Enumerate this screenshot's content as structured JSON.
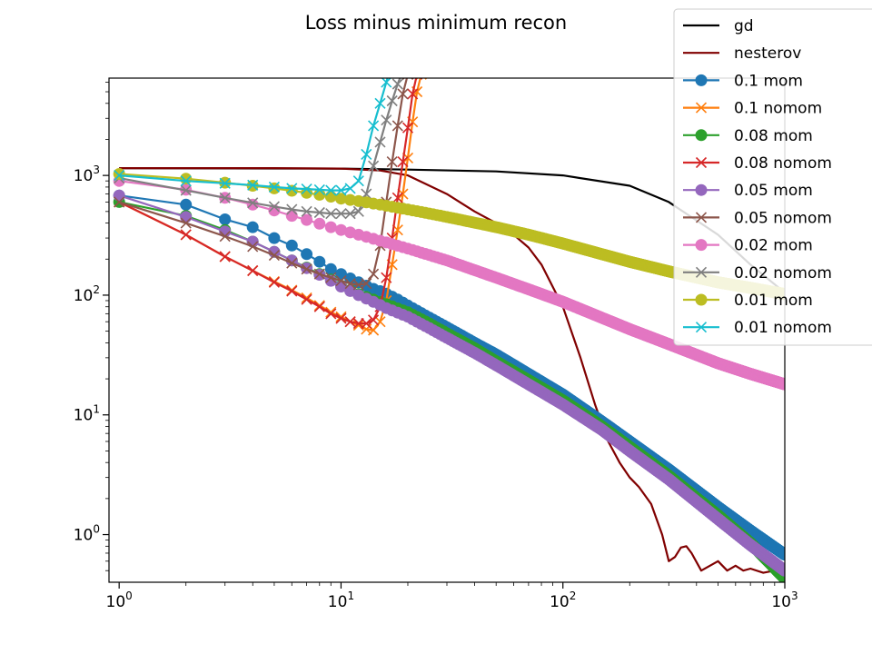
{
  "chart_data": {
    "type": "line",
    "title": "Loss minus minimum recon",
    "xlabel": "",
    "ylabel": "",
    "xscale": "log",
    "yscale": "log",
    "xlim": [
      0.9,
      1000
    ],
    "ylim": [
      0.4,
      6500
    ],
    "grid": false,
    "legend_position": "top-right",
    "x_ticks": [
      {
        "value": 1,
        "base": "10",
        "exp": "0"
      },
      {
        "value": 10,
        "base": "10",
        "exp": "1"
      },
      {
        "value": 100,
        "base": "10",
        "exp": "2"
      },
      {
        "value": 1000,
        "base": "10",
        "exp": "3"
      }
    ],
    "y_ticks": [
      {
        "value": 1,
        "base": "10",
        "exp": "0"
      },
      {
        "value": 10,
        "base": "10",
        "exp": "1"
      },
      {
        "value": 100,
        "base": "10",
        "exp": "2"
      },
      {
        "value": 1000,
        "base": "10",
        "exp": "3"
      }
    ],
    "series": [
      {
        "name": "gd",
        "color": "#000000",
        "marker": "none",
        "x": [
          1,
          10,
          20,
          50,
          100,
          200,
          300,
          500,
          700,
          1000
        ],
        "y": [
          1150,
          1140,
          1120,
          1080,
          1000,
          820,
          600,
          320,
          180,
          105
        ]
      },
      {
        "name": "nesterov",
        "color": "#800000",
        "marker": "none",
        "x": [
          1,
          5,
          10,
          15,
          20,
          30,
          40,
          50,
          60,
          70,
          80,
          100,
          120,
          140,
          160,
          180,
          200,
          220,
          250,
          280,
          300,
          320,
          340,
          360,
          380,
          420,
          460,
          500,
          550,
          600,
          650,
          700,
          800,
          900,
          1000
        ],
        "y": [
          1150,
          1150,
          1140,
          1100,
          1000,
          700,
          500,
          400,
          320,
          250,
          180,
          80,
          30,
          12,
          6,
          4,
          3,
          2.5,
          1.8,
          1.0,
          0.6,
          0.65,
          0.78,
          0.8,
          0.7,
          0.5,
          0.55,
          0.6,
          0.5,
          0.55,
          0.5,
          0.52,
          0.48,
          0.5,
          0.45
        ]
      },
      {
        "name": "0.1 mom",
        "color": "#1f77b4",
        "marker": "circle",
        "x": [
          1,
          2,
          3,
          4,
          5,
          6,
          7,
          8,
          9,
          10,
          11,
          12,
          13,
          14,
          15,
          16,
          18,
          20,
          25,
          30,
          40,
          50,
          70,
          100,
          150,
          200,
          300,
          500,
          700,
          1000
        ],
        "y": [
          680,
          570,
          430,
          370,
          300,
          260,
          220,
          190,
          165,
          150,
          138,
          128,
          120,
          113,
          108,
          103,
          92,
          82,
          65,
          54,
          40,
          32,
          22,
          14.8,
          8.8,
          6.0,
          3.5,
          1.7,
          1.08,
          0.68
        ]
      },
      {
        "name": "0.1 nomom",
        "color": "#ff7f0e",
        "marker": "x",
        "x": [
          1,
          2,
          3,
          4,
          5,
          6,
          7,
          8,
          9,
          10,
          11,
          12,
          13,
          14,
          15,
          16,
          17,
          18,
          19,
          20,
          21,
          22,
          23
        ],
        "y": [
          600,
          320,
          210,
          160,
          130,
          110,
          95,
          82,
          72,
          66,
          60,
          56,
          52,
          51,
          60,
          90,
          180,
          350,
          700,
          1400,
          2800,
          5000,
          7000
        ]
      },
      {
        "name": "0.08 mom",
        "color": "#2ca02c",
        "marker": "circle",
        "x": [
          1,
          2,
          3,
          4,
          5,
          6,
          7,
          8,
          9,
          10,
          12,
          14,
          16,
          20,
          25,
          30,
          40,
          50,
          70,
          100,
          150,
          200,
          300,
          500,
          700,
          1000
        ],
        "y": [
          600,
          460,
          350,
          280,
          230,
          195,
          170,
          150,
          135,
          120,
          102,
          92,
          84,
          72,
          58,
          48,
          36,
          28,
          19.5,
          13.2,
          8.0,
          5.4,
          3.1,
          1.45,
          0.85,
          0.43
        ]
      },
      {
        "name": "0.08 nomom",
        "color": "#d62728",
        "marker": "x",
        "x": [
          1,
          2,
          3,
          4,
          5,
          6,
          7,
          8,
          9,
          10,
          11,
          12,
          13,
          14,
          15,
          16,
          17,
          18,
          19,
          20,
          21,
          22,
          23
        ],
        "y": [
          600,
          320,
          210,
          160,
          128,
          108,
          92,
          80,
          70,
          64,
          60,
          58,
          58,
          62,
          80,
          140,
          300,
          650,
          1300,
          2500,
          4800,
          7000,
          9000
        ]
      },
      {
        "name": "0.05 mom",
        "color": "#9467bd",
        "marker": "circle",
        "x": [
          1,
          2,
          3,
          4,
          5,
          6,
          7,
          8,
          9,
          10,
          12,
          14,
          16,
          20,
          25,
          30,
          40,
          50,
          70,
          100,
          150,
          200,
          300,
          500,
          700,
          1000
        ],
        "y": [
          680,
          450,
          340,
          280,
          230,
          195,
          168,
          148,
          132,
          118,
          100,
          88,
          78,
          66,
          53,
          44,
          33,
          26,
          18,
          12.2,
          7.5,
          5.0,
          2.9,
          1.35,
          0.82,
          0.5
        ]
      },
      {
        "name": "0.05 nomom",
        "color": "#8c564b",
        "marker": "x",
        "x": [
          1,
          2,
          3,
          4,
          5,
          6,
          7,
          8,
          9,
          10,
          11,
          12,
          13,
          14,
          15,
          16,
          17,
          18,
          19,
          20,
          21
        ],
        "y": [
          600,
          400,
          310,
          255,
          215,
          185,
          165,
          150,
          140,
          132,
          125,
          122,
          125,
          150,
          260,
          600,
          1300,
          2600,
          4800,
          7000,
          9000
        ]
      },
      {
        "name": "0.02 mom",
        "color": "#e377c2",
        "marker": "circle",
        "x": [
          1,
          2,
          3,
          4,
          5,
          6,
          7,
          8,
          9,
          10,
          12,
          15,
          20,
          30,
          50,
          70,
          100,
          200,
          300,
          500,
          700,
          1000
        ],
        "y": [
          900,
          760,
          650,
          570,
          510,
          460,
          425,
          395,
          370,
          350,
          320,
          285,
          245,
          195,
          140,
          112,
          88,
          52,
          39,
          27,
          22,
          18
        ]
      },
      {
        "name": "0.02 nomom",
        "color": "#7f7f7f",
        "marker": "x",
        "x": [
          1,
          2,
          3,
          4,
          5,
          6,
          7,
          8,
          9,
          10,
          11,
          12,
          13,
          14,
          15,
          16,
          17,
          18,
          19,
          20
        ],
        "y": [
          950,
          750,
          650,
          590,
          550,
          520,
          500,
          490,
          480,
          480,
          480,
          500,
          700,
          1200,
          1900,
          2900,
          4200,
          5800,
          7500,
          9000
        ]
      },
      {
        "name": "0.01 mom",
        "color": "#bcbd22",
        "marker": "circle",
        "x": [
          1,
          2,
          3,
          4,
          5,
          6,
          7,
          8,
          9,
          10,
          12,
          15,
          20,
          30,
          50,
          70,
          100,
          200,
          300,
          500,
          700,
          1000
        ],
        "y": [
          1030,
          940,
          870,
          820,
          780,
          745,
          715,
          690,
          665,
          640,
          610,
          570,
          520,
          450,
          370,
          320,
          270,
          190,
          158,
          128,
          115,
          102
        ]
      },
      {
        "name": "0.01 nomom",
        "color": "#17becf",
        "marker": "x",
        "x": [
          1,
          2,
          3,
          4,
          5,
          6,
          7,
          8,
          9,
          10,
          11,
          12,
          13,
          14,
          15,
          16,
          17
        ],
        "y": [
          1000,
          900,
          860,
          830,
          800,
          780,
          770,
          760,
          750,
          750,
          780,
          900,
          1500,
          2600,
          4000,
          6000,
          9000
        ]
      }
    ]
  }
}
